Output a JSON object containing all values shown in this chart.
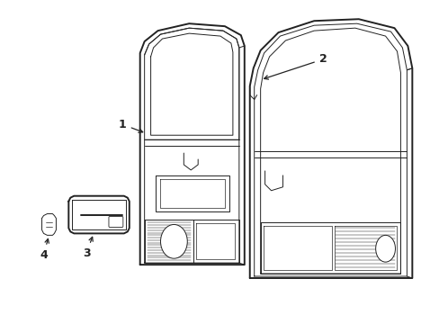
{
  "background_color": "#ffffff",
  "line_color": "#222222",
  "figsize": [
    4.89,
    3.6
  ],
  "dpi": 100,
  "lw_outer": 1.4,
  "lw_inner": 0.7,
  "lw_hatch": 0.35,
  "label_fontsize": 9
}
